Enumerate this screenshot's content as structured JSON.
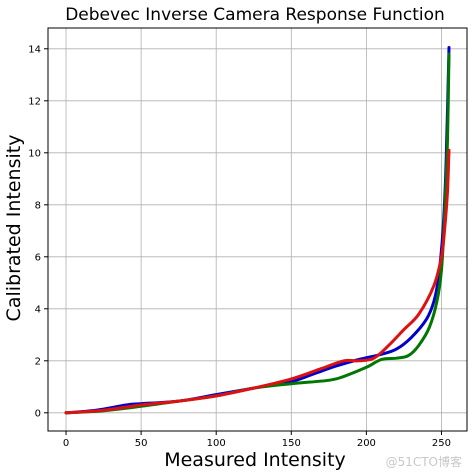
{
  "chart_data": {
    "type": "line",
    "title": "Debevec Inverse Camera Response Function",
    "xlabel": "Measured Intensity",
    "ylabel": "Calibrated Intensity",
    "xlim": [
      -12,
      267
    ],
    "ylim": [
      -0.7,
      14.8
    ],
    "grid": true,
    "x_ticks": [
      0,
      50,
      100,
      150,
      200,
      250
    ],
    "y_ticks": [
      0,
      2,
      4,
      6,
      8,
      10,
      12,
      14
    ],
    "series": [
      {
        "color": "#0000cc",
        "points": [
          [
            0,
            0
          ],
          [
            20,
            0.1
          ],
          [
            40,
            0.3
          ],
          [
            50,
            0.35
          ],
          [
            75,
            0.45
          ],
          [
            100,
            0.7
          ],
          [
            125,
            0.95
          ],
          [
            150,
            1.2
          ],
          [
            165,
            1.5
          ],
          [
            180,
            1.8
          ],
          [
            195,
            2.05
          ],
          [
            210,
            2.25
          ],
          [
            220,
            2.45
          ],
          [
            230,
            2.9
          ],
          [
            240,
            3.6
          ],
          [
            245,
            4.3
          ],
          [
            248,
            5.2
          ],
          [
            251,
            7.0
          ],
          [
            253,
            9.5
          ],
          [
            255,
            14.05
          ]
        ]
      },
      {
        "color": "#007700",
        "points": [
          [
            0,
            0
          ],
          [
            25,
            0.08
          ],
          [
            50,
            0.25
          ],
          [
            75,
            0.45
          ],
          [
            100,
            0.65
          ],
          [
            125,
            0.95
          ],
          [
            150,
            1.12
          ],
          [
            175,
            1.25
          ],
          [
            185,
            1.4
          ],
          [
            200,
            1.75
          ],
          [
            210,
            2.05
          ],
          [
            220,
            2.1
          ],
          [
            228,
            2.2
          ],
          [
            235,
            2.6
          ],
          [
            242,
            3.3
          ],
          [
            247,
            4.3
          ],
          [
            250,
            5.5
          ],
          [
            252,
            7.5
          ],
          [
            254,
            10.5
          ],
          [
            255,
            13.8
          ]
        ]
      },
      {
        "color": "#dd1111",
        "points": [
          [
            0,
            0
          ],
          [
            25,
            0.1
          ],
          [
            50,
            0.3
          ],
          [
            75,
            0.45
          ],
          [
            100,
            0.65
          ],
          [
            125,
            0.95
          ],
          [
            150,
            1.3
          ],
          [
            170,
            1.7
          ],
          [
            185,
            2.0
          ],
          [
            195,
            2.0
          ],
          [
            205,
            2.1
          ],
          [
            215,
            2.6
          ],
          [
            225,
            3.2
          ],
          [
            235,
            3.8
          ],
          [
            245,
            4.9
          ],
          [
            250,
            6.0
          ],
          [
            252,
            7.0
          ],
          [
            254,
            8.5
          ],
          [
            255,
            10.1
          ]
        ]
      }
    ]
  },
  "watermark": "@51CTO博客"
}
